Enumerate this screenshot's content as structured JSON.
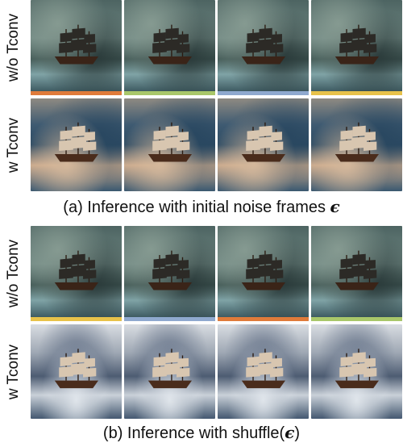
{
  "sections": [
    {
      "caption_text": "(a) Inference with initial noise frames ",
      "caption_symbol": "ϵ",
      "rows": [
        {
          "label": "w/o Tconv",
          "frames": [
            {
              "scene": "storm",
              "bar_color": "#e07b3a"
            },
            {
              "scene": "storm",
              "bar_color": "#a9c76a"
            },
            {
              "scene": "storm",
              "bar_color": "#8fa9cf"
            },
            {
              "scene": "storm",
              "bar_color": "#e8c24a"
            }
          ]
        },
        {
          "label": "w Tconv",
          "frames": [
            {
              "scene": "ocean"
            },
            {
              "scene": "ocean"
            },
            {
              "scene": "ocean"
            },
            {
              "scene": "ocean"
            }
          ]
        }
      ]
    },
    {
      "caption_text": "(b) Inference with shuffle(",
      "caption_symbol": "ϵ",
      "caption_suffix": ")",
      "rows": [
        {
          "label": "w/o Tconv",
          "frames": [
            {
              "scene": "storm",
              "bar_color": "#e8c24a"
            },
            {
              "scene": "storm",
              "bar_color": "#8fa9cf"
            },
            {
              "scene": "storm",
              "bar_color": "#e07b3a"
            },
            {
              "scene": "storm",
              "bar_color": "#a9c76a"
            }
          ]
        },
        {
          "label": "w Tconv",
          "frames": [
            {
              "scene": "ocean2"
            },
            {
              "scene": "ocean2"
            },
            {
              "scene": "ocean2"
            },
            {
              "scene": "ocean2"
            }
          ]
        }
      ]
    }
  ]
}
